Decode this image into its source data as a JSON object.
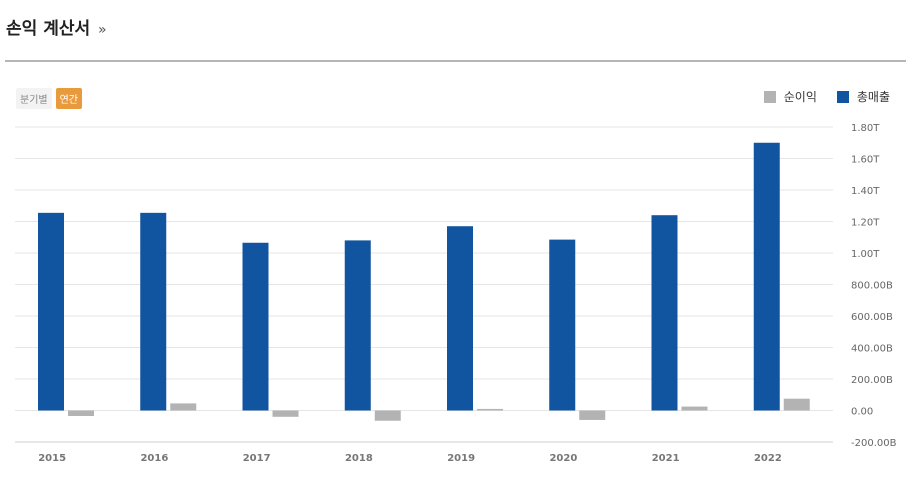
{
  "header": {
    "title": "손익 계산서",
    "more": "»"
  },
  "tabs": [
    {
      "label": "분기별",
      "active": false
    },
    {
      "label": "연간",
      "active": true
    }
  ],
  "colors": {
    "revenue": "#1155a1",
    "net_income": "#b3b3b3",
    "active_tab": "#e89a3c",
    "grid": "#e6e6e6"
  },
  "chart_data": {
    "type": "bar",
    "categories": [
      "2015",
      "2016",
      "2017",
      "2018",
      "2019",
      "2020",
      "2021",
      "2022"
    ],
    "unit": "B",
    "series": [
      {
        "name": "총매출",
        "values": [
          1255,
          1255,
          1065,
          1080,
          1170,
          1085,
          1240,
          1700
        ]
      },
      {
        "name": "순이익",
        "values": [
          -35,
          45,
          -40,
          -65,
          10,
          -60,
          25,
          75
        ]
      }
    ],
    "ylim": [
      -200,
      1800
    ],
    "yticks": [
      "1.80T",
      "1.60T",
      "1.40T",
      "1.20T",
      "1.00T",
      "800.00B",
      "600.00B",
      "400.00B",
      "200.00B",
      "0.00",
      "-200.00B"
    ],
    "legend": [
      {
        "label": "순이익",
        "color": "#b3b3b3"
      },
      {
        "label": "총매출",
        "color": "#1155a1"
      }
    ],
    "legend_position": "top-right",
    "grid": true
  }
}
